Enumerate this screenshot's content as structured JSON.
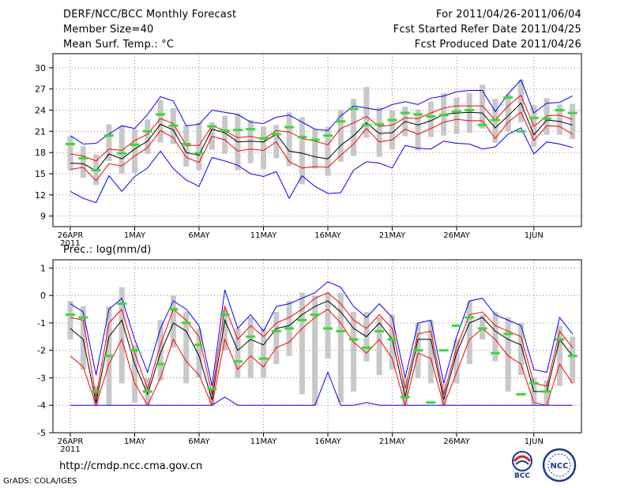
{
  "header": {
    "title": "DERF/NCC/BCC Monthly Forecast",
    "member": "Member Size=40",
    "variable": "Mean Surf. Temp.: °C",
    "period": "For 2011/04/26-2011/06/04",
    "refer": "Fcst Started Refer Date 2011/04/25",
    "produced": "Fcst Produced Date 2011/04/26"
  },
  "panel2_label": "Prec.: log(mm/d)",
  "footer": {
    "url": "http://cmdp.ncc.cma.gov.cn",
    "credit": "GrADS: COLA/IGES",
    "logo_left": "BCC",
    "logo_right": "NCC"
  },
  "colors": {
    "envelope": "#0000ff",
    "quartile": "#ff0000",
    "median": "#000000",
    "box": "#c8c8c8",
    "mean": "#33dd33",
    "grid": "#888888"
  },
  "chart_data": [
    {
      "type": "box-line",
      "title": "Mean Surf. Temp.: °C",
      "ylim": [
        7.5,
        32
      ],
      "yticks": [
        9,
        12,
        15,
        18,
        21,
        24,
        27,
        30
      ],
      "xticks": [
        {
          "day": 0,
          "label": "26APR",
          "sub": "2011"
        },
        {
          "day": 5,
          "label": "1MAY"
        },
        {
          "day": 10,
          "label": "6MAY"
        },
        {
          "day": 15,
          "label": "11MAY"
        },
        {
          "day": 20,
          "label": "16MAY"
        },
        {
          "day": 25,
          "label": "21MAY"
        },
        {
          "day": 30,
          "label": "26MAY"
        },
        {
          "day": 36,
          "label": "1JUN"
        }
      ],
      "days": 40,
      "max": [
        20.4,
        19.2,
        19.3,
        20.6,
        21.8,
        21.4,
        23.4,
        25.9,
        25.3,
        21.8,
        22.0,
        24.0,
        23.7,
        23.4,
        22.3,
        22.1,
        23.0,
        23.3,
        22.3,
        21.3,
        21.1,
        23.2,
        24.6,
        24.3,
        24.0,
        24.8,
        25.2,
        24.8,
        25.7,
        26.0,
        26.6,
        26.8,
        26.8,
        23.8,
        26.3,
        28.3,
        23.6,
        25.0,
        25.1,
        26.0
      ],
      "q75": [
        17.8,
        17.5,
        16.8,
        18.5,
        18.3,
        19.7,
        20.6,
        22.8,
        22.1,
        19.0,
        19.0,
        21.8,
        21.1,
        20.1,
        20.3,
        19.9,
        21.1,
        20.9,
        20.0,
        19.6,
        19.1,
        21.4,
        22.2,
        23.1,
        21.7,
        21.9,
        22.9,
        22.8,
        23.6,
        24.3,
        24.6,
        24.6,
        24.6,
        22.6,
        24.6,
        26.1,
        21.7,
        23.2,
        23.3,
        22.7
      ],
      "median": [
        16.5,
        16.4,
        15.4,
        17.8,
        17.1,
        18.5,
        19.6,
        22.0,
        21.2,
        18.0,
        17.6,
        21.3,
        20.8,
        19.5,
        19.6,
        19.5,
        20.6,
        18.2,
        17.9,
        17.4,
        17.1,
        19.0,
        20.4,
        22.2,
        20.7,
        20.8,
        22.4,
        21.9,
        22.5,
        23.4,
        23.6,
        23.7,
        23.6,
        21.5,
        23.2,
        25.0,
        20.5,
        22.6,
        22.4,
        21.9
      ],
      "q25": [
        15.6,
        15.9,
        14.0,
        16.4,
        16.1,
        17.5,
        18.7,
        21.1,
        20.1,
        17.3,
        16.6,
        20.3,
        19.8,
        18.2,
        18.5,
        18.3,
        19.5,
        16.7,
        15.8,
        16.0,
        15.9,
        17.6,
        19.2,
        21.4,
        19.5,
        19.8,
        21.3,
        20.6,
        21.4,
        22.3,
        22.7,
        22.5,
        22.5,
        20.0,
        22.3,
        23.7,
        19.7,
        21.8,
        21.7,
        20.6
      ],
      "min": [
        12.5,
        11.5,
        10.9,
        14.7,
        12.5,
        14.6,
        15.8,
        18.2,
        15.7,
        14.1,
        13.2,
        17.3,
        16.8,
        16.2,
        15.0,
        14.6,
        15.3,
        11.5,
        14.7,
        13.2,
        12.2,
        12.3,
        15.5,
        16.7,
        16.5,
        15.8,
        19.0,
        18.6,
        18.5,
        19.6,
        19.3,
        19.2,
        18.5,
        18.8,
        20.6,
        21.5,
        17.8,
        19.5,
        19.2,
        18.7
      ],
      "box_top": [
        20.3,
        18.9,
        17.7,
        22.0,
        21.7,
        21.3,
        22.7,
        25.4,
        24.3,
        21.9,
        22.3,
        22.3,
        23.2,
        23.5,
        22.6,
        21.7,
        21.9,
        23.7,
        23.0,
        21.3,
        21.6,
        24.0,
        25.6,
        27.3,
        24.4,
        24.0,
        24.5,
        24.1,
        25.2,
        26.4,
        25.8,
        26.4,
        27.6,
        25.6,
        26.3,
        28.3,
        24.7,
        25.7,
        24.8,
        24.9
      ],
      "box_bottom": [
        15.5,
        14.4,
        13.4,
        16.8,
        15.0,
        15.1,
        17.8,
        19.4,
        19.2,
        16.0,
        15.5,
        18.4,
        17.8,
        15.5,
        16.5,
        15.6,
        17.2,
        16.1,
        13.5,
        15.7,
        14.7,
        16.7,
        17.5,
        20.1,
        17.4,
        18.4,
        20.3,
        18.3,
        20.2,
        20.4,
        20.6,
        20.8,
        21.4,
        19.4,
        21.0,
        22.3,
        18.8,
        20.5,
        20.5,
        19.9
      ],
      "mean": [
        19.2,
        17.2,
        15.5,
        20.4,
        17.9,
        19.1,
        21.0,
        23.4,
        21.8,
        19.2,
        17.9,
        21.7,
        21.1,
        21.2,
        21.3,
        20.0,
        20.6,
        21.6,
        20.2,
        19.8,
        20.4,
        22.4,
        24.2,
        21.9,
        22.0,
        22.6,
        23.6,
        23.4,
        23.1,
        23.3,
        23.8,
        24.0,
        21.9,
        22.6,
        25.8,
        21.0,
        22.9,
        22.8,
        24.0,
        23.6
      ]
    },
    {
      "type": "box-line",
      "title": "Prec.: log(mm/d)",
      "ylim": [
        -5,
        1.3
      ],
      "yticks": [
        -5,
        -4,
        -3,
        -2,
        -1,
        0,
        1
      ],
      "xticks": [
        {
          "day": 0,
          "label": "26APR",
          "sub": "2011"
        },
        {
          "day": 5,
          "label": "1MAY"
        },
        {
          "day": 10,
          "label": "6MAY"
        },
        {
          "day": 15,
          "label": "11MAY"
        },
        {
          "day": 20,
          "label": "16MAY"
        },
        {
          "day": 25,
          "label": "21MAY"
        },
        {
          "day": 30,
          "label": "26MAY"
        },
        {
          "day": 36,
          "label": "1JUN"
        }
      ],
      "days": 40,
      "max": [
        -0.3,
        -0.6,
        -2.9,
        -0.5,
        -0.1,
        -1.6,
        -2.8,
        -1.2,
        -0.2,
        -0.5,
        -1.1,
        -3.3,
        0.2,
        -1.2,
        -0.7,
        -1.3,
        -0.4,
        -0.3,
        -0.1,
        0.1,
        0.5,
        0.3,
        -0.4,
        -0.8,
        -0.3,
        -0.8,
        -3.0,
        -1.0,
        -0.9,
        -3.2,
        -1.5,
        -0.2,
        -0.1,
        -0.7,
        -0.9,
        -1.1,
        -2.7,
        -2.8,
        -0.8,
        -1.4
      ],
      "q75": [
        -0.8,
        -0.9,
        -3.7,
        -1.0,
        -0.5,
        -2.1,
        -3.4,
        -1.8,
        -0.5,
        -0.9,
        -1.5,
        -3.6,
        -0.4,
        -1.6,
        -1.1,
        -1.5,
        -1.0,
        -0.8,
        -0.5,
        -0.1,
        0.1,
        -0.3,
        -0.9,
        -1.2,
        -0.7,
        -1.2,
        -3.4,
        -1.4,
        -1.3,
        -3.6,
        -1.9,
        -0.7,
        -0.6,
        -1.1,
        -1.3,
        -1.5,
        -3.2,
        -3.3,
        -1.3,
        -1.9
      ],
      "median": [
        -1.2,
        -1.6,
        -3.9,
        -1.5,
        -0.9,
        -2.5,
        -3.6,
        -2.1,
        -1.0,
        -1.3,
        -2.2,
        -3.8,
        -0.9,
        -2.0,
        -1.6,
        -1.8,
        -1.2,
        -1.1,
        -0.7,
        -0.4,
        -0.2,
        -0.6,
        -1.2,
        -1.5,
        -1.0,
        -1.6,
        -3.7,
        -1.6,
        -1.6,
        -3.8,
        -2.1,
        -1.0,
        -0.8,
        -1.3,
        -1.6,
        -1.8,
        -3.5,
        -3.5,
        -1.6,
        -2.2
      ],
      "q25": [
        -2.2,
        -2.6,
        -4.0,
        -2.5,
        -1.6,
        -3.2,
        -4.0,
        -3.0,
        -1.6,
        -2.4,
        -2.9,
        -4.0,
        -1.6,
        -2.7,
        -2.2,
        -2.6,
        -1.9,
        -1.7,
        -1.2,
        -0.8,
        -0.5,
        -1.0,
        -1.7,
        -2.1,
        -1.6,
        -2.3,
        -4.0,
        -2.1,
        -2.3,
        -4.0,
        -2.8,
        -1.6,
        -1.2,
        -1.6,
        -2.2,
        -2.5,
        -3.9,
        -4.0,
        -2.5,
        -3.2
      ],
      "min": [
        -4.0,
        -4.0,
        -4.0,
        -4.0,
        -4.0,
        -4.0,
        -4.0,
        -4.0,
        -4.0,
        -4.0,
        -4.0,
        -4.0,
        -3.7,
        -4.0,
        -4.0,
        -4.0,
        -4.0,
        -4.0,
        -4.0,
        -4.0,
        -2.8,
        -4.0,
        -4.0,
        -3.9,
        -4.0,
        -4.0,
        -4.0,
        -4.0,
        -4.0,
        -4.0,
        -4.0,
        -4.0,
        -4.0,
        -4.0,
        -4.0,
        -4.0,
        -4.0,
        -4.0,
        -4.0,
        -4.0
      ],
      "box_top": [
        -0.2,
        -0.4,
        -3.3,
        -0.4,
        0.3,
        -1.8,
        -3.0,
        -0.9,
        0.0,
        -0.6,
        -1.2,
        -3.4,
        -0.5,
        -1.2,
        -0.8,
        -1.2,
        -0.6,
        -0.2,
        0.1,
        0.0,
        0.1,
        0.1,
        -0.6,
        -0.6,
        -0.8,
        -0.7,
        -3.0,
        -1.0,
        -0.9,
        -3.2,
        -1.6,
        -0.2,
        -0.7,
        -0.6,
        -0.8,
        -1.0,
        -3.0,
        -3.1,
        -1.1,
        -1.5
      ],
      "box_bottom": [
        -1.6,
        -2.7,
        -4.0,
        -4.0,
        -3.2,
        -3.9,
        -4.0,
        -3.1,
        -1.9,
        -3.2,
        -3.0,
        -4.0,
        -2.0,
        -3.0,
        -3.0,
        -3.0,
        -2.5,
        -2.2,
        -3.6,
        -4.0,
        -2.3,
        -3.9,
        -3.5,
        -2.4,
        -2.9,
        -2.7,
        -4.0,
        -3.0,
        -3.2,
        -4.0,
        -3.2,
        -2.5,
        -1.6,
        -2.4,
        -3.5,
        -2.9,
        -4.0,
        -4.0,
        -3.3,
        -3.2
      ],
      "mean": [
        -0.7,
        -0.8,
        -3.5,
        -2.2,
        -0.3,
        -2.0,
        -3.5,
        -2.5,
        -0.5,
        -1.0,
        -1.8,
        -3.4,
        -0.7,
        -2.4,
        -1.5,
        -2.3,
        -1.3,
        -1.2,
        -0.9,
        -0.7,
        -1.2,
        -1.3,
        -1.6,
        -1.9,
        -1.3,
        -1.6,
        -3.7,
        -2.0,
        -3.9,
        -2.0,
        -1.1,
        -0.8,
        -1.2,
        -2.1,
        -1.4,
        -3.6,
        -3.2,
        -3.5,
        -1.6,
        -2.2
      ]
    }
  ]
}
